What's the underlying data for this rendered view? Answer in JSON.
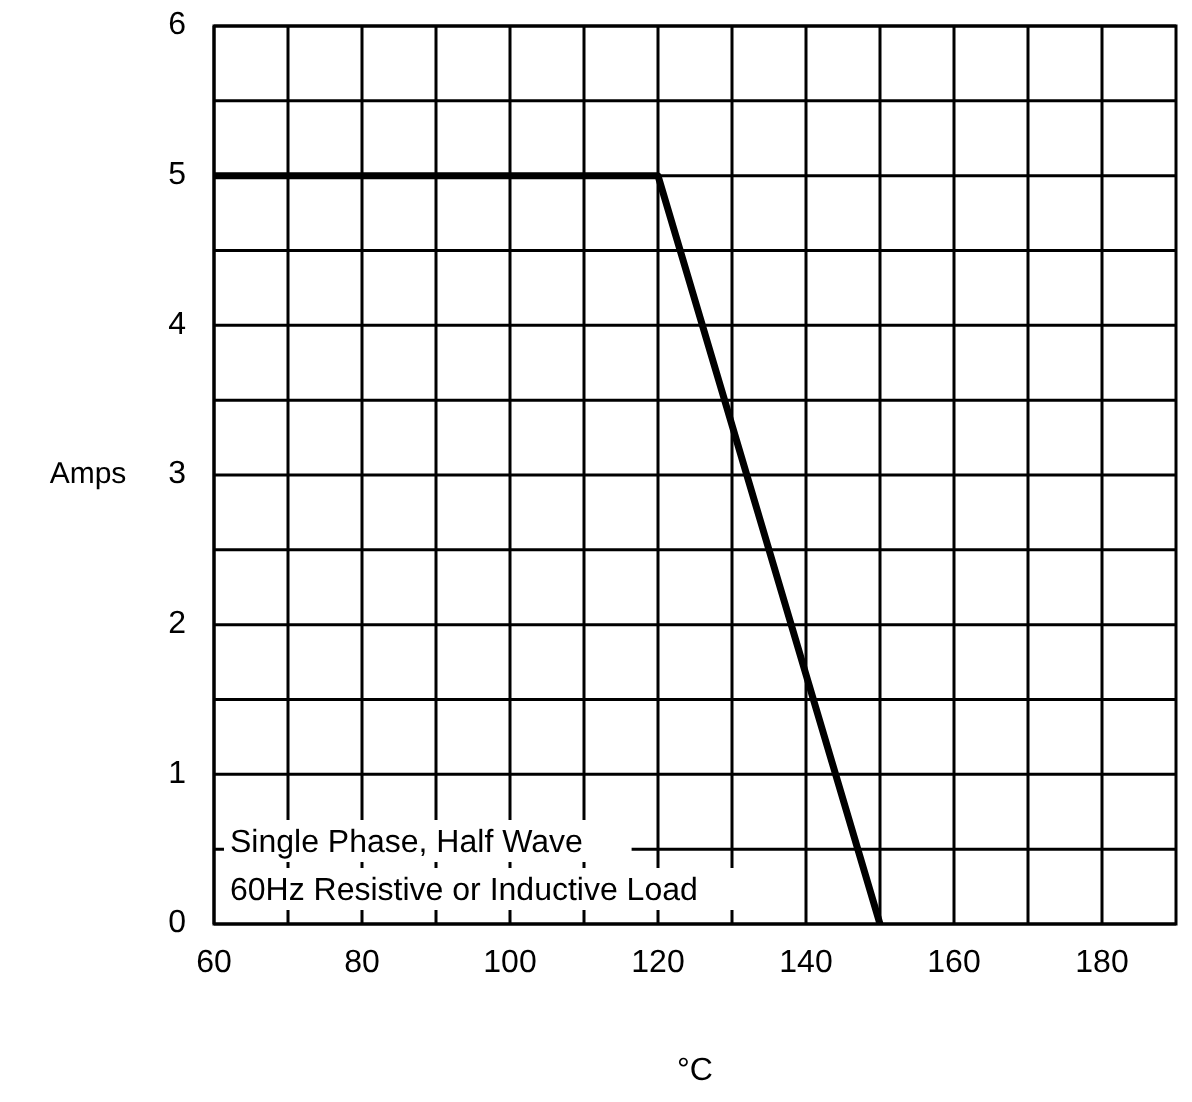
{
  "chart_data": {
    "type": "line",
    "xlabel": "°C",
    "ylabel": "Amps",
    "x": [
      60,
      120,
      150
    ],
    "series": [
      {
        "color": "#000000",
        "values": [
          5,
          5,
          0
        ]
      }
    ],
    "xlim": [
      60,
      190
    ],
    "xticks": [
      60,
      {
        "value": 70,
        "label": null
      },
      80,
      {
        "value": 90,
        "label": null
      },
      100,
      {
        "value": 110,
        "label": null
      },
      120,
      {
        "value": 130,
        "label": null
      },
      140,
      {
        "value": 150,
        "label": null
      },
      160,
      {
        "value": 170,
        "label": null
      },
      180
    ],
    "ylim": [
      0,
      6
    ],
    "yticks": [
      0,
      {
        "value": 0.5,
        "label": null
      },
      1,
      {
        "value": 1.5,
        "label": null
      },
      2,
      {
        "value": 2.5,
        "label": null
      },
      3,
      {
        "value": 3.5,
        "label": null
      },
      4,
      {
        "value": 4.5,
        "label": null
      },
      5,
      {
        "value": 5.5,
        "label": null
      },
      6
    ],
    "grid": true,
    "line_style": "solid",
    "annotations": [
      "Single Phase, Half Wave",
      "60Hz Resistive or Inductive Load"
    ]
  }
}
